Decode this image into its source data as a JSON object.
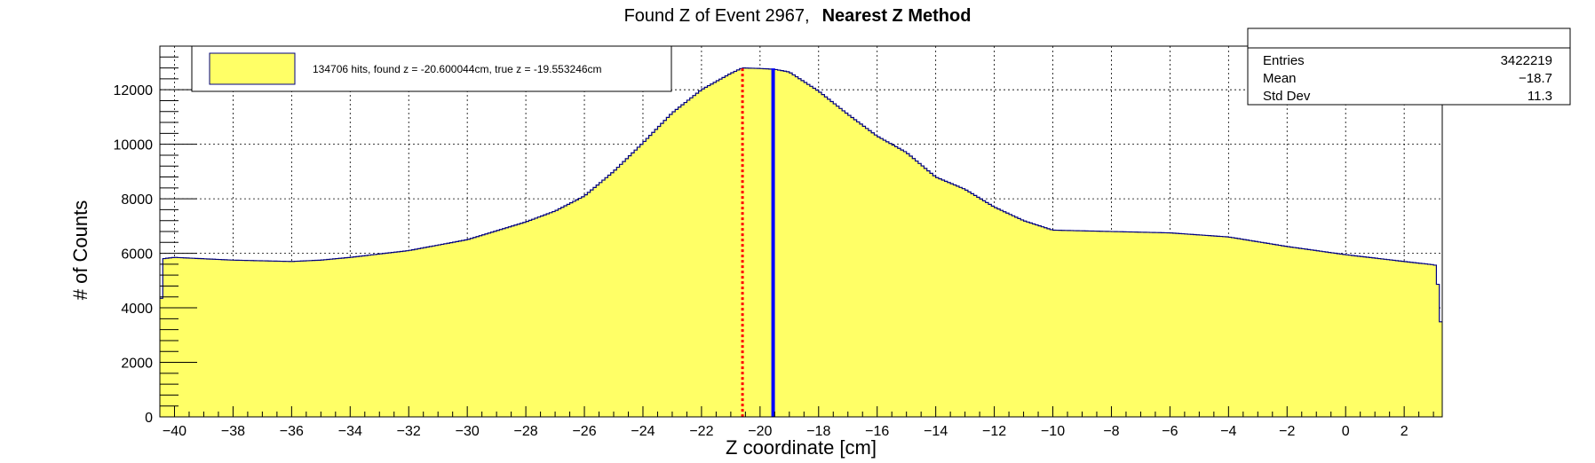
{
  "chart_data": {
    "type": "area",
    "title": "Found Z of Event 2967,",
    "title_bold": "Nearest Z Method",
    "xlabel": "Z coordinate [cm]",
    "ylabel": "# of Counts",
    "xlim": [
      -40.5,
      3.3
    ],
    "ylim": [
      0,
      13600
    ],
    "x_ticks": [
      -40,
      -38,
      -36,
      -34,
      -32,
      -30,
      -28,
      -26,
      -24,
      -22,
      -20,
      -18,
      -16,
      -14,
      -12,
      -10,
      -8,
      -6,
      -4,
      -2,
      0,
      2
    ],
    "y_ticks": [
      0,
      2000,
      4000,
      6000,
      8000,
      10000,
      12000
    ],
    "grid": true,
    "fill_color": "#ffff66",
    "line_color": "#000080",
    "profile": {
      "x": [
        -40.5,
        -40.4,
        -40.0,
        -38.0,
        -36.0,
        -35.0,
        -34.0,
        -32.0,
        -30.0,
        -28.0,
        -27.0,
        -26.0,
        -25.0,
        -24.0,
        -23.0,
        -22.0,
        -21.0,
        -20.6,
        -20.0,
        -19.5,
        -19.0,
        -18.0,
        -17.0,
        -16.0,
        -15.0,
        -14.0,
        -13.0,
        -12.0,
        -11.0,
        -10.0,
        -8.0,
        -6.0,
        -4.0,
        -2.0,
        0.0,
        2.0,
        3.0,
        3.1,
        3.3
      ],
      "y": [
        2900,
        5800,
        5850,
        5750,
        5700,
        5750,
        5850,
        6100,
        6500,
        7150,
        7550,
        8100,
        9000,
        10050,
        11150,
        12000,
        12600,
        12800,
        12780,
        12750,
        12650,
        11950,
        11100,
        10300,
        9700,
        8800,
        8350,
        7700,
        7200,
        6850,
        6800,
        6750,
        6600,
        6250,
        5950,
        5700,
        5580,
        5550,
        2800
      ]
    },
    "lines": [
      {
        "name": "found z",
        "x": -20.600044,
        "color": "#ff0000",
        "style": "dotted"
      },
      {
        "name": "true z",
        "x": -19.553246,
        "color": "#0000ff",
        "style": "solid"
      }
    ],
    "legend": {
      "placement": "top-left",
      "text": "134706 hits, found z = -20.600044cm, true z = -19.553246cm"
    },
    "stats": {
      "placement": "top-right",
      "rows": [
        {
          "label": "Entries",
          "value": "3422219"
        },
        {
          "label": "Mean",
          "value": "−18.7"
        },
        {
          "label": "Std Dev",
          "value": "11.3"
        }
      ]
    }
  }
}
